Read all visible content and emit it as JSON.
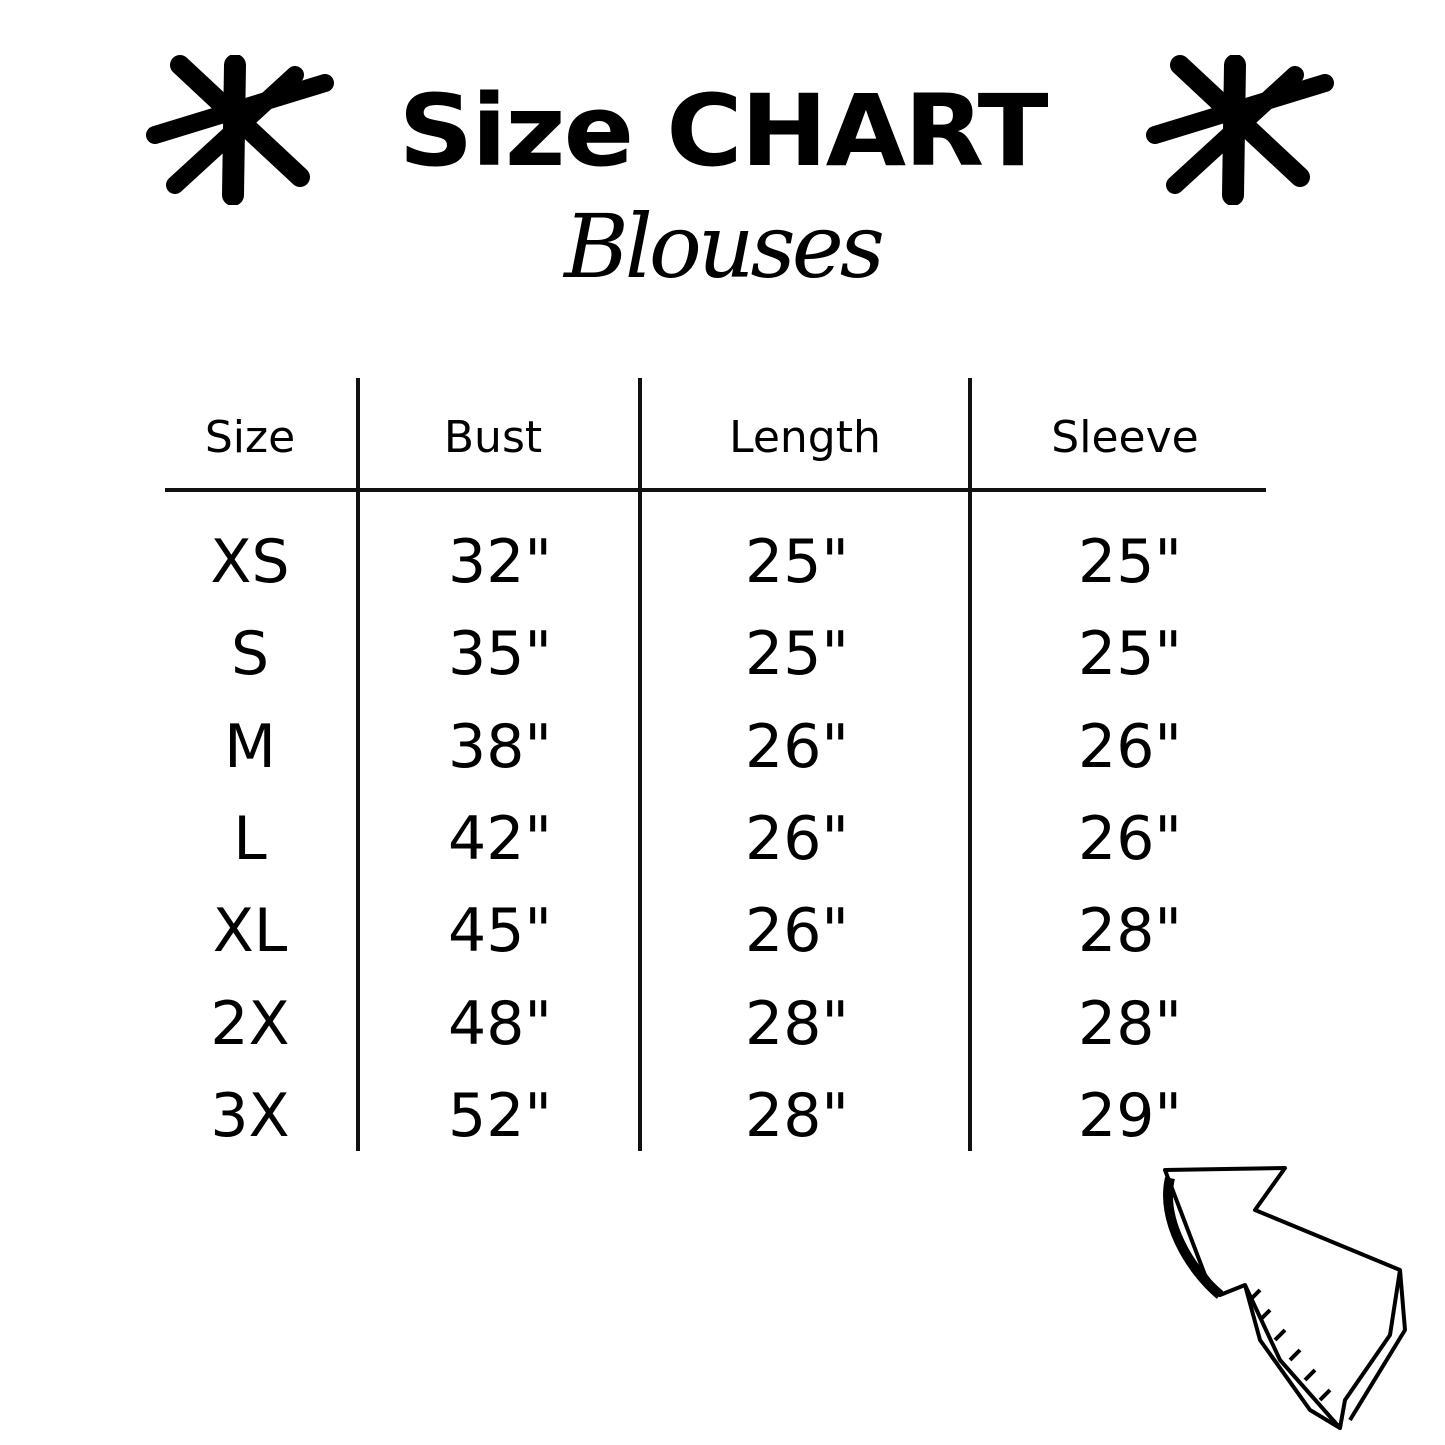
{
  "title": "Size CHART",
  "subtitle": "Blouses",
  "table": {
    "headers": [
      "Size",
      "Bust",
      "Length",
      "Sleeve"
    ],
    "rows": [
      [
        "XS",
        "32\"",
        "25\"",
        "25\""
      ],
      [
        "S",
        "35\"",
        "25\"",
        "25\""
      ],
      [
        "M",
        "38\"",
        "26\"",
        "26\""
      ],
      [
        "L",
        "42\"",
        "26\"",
        "26\""
      ],
      [
        "XL",
        "45\"",
        "26\"",
        "28\""
      ],
      [
        "2X",
        "48\"",
        "28\"",
        "28\""
      ],
      [
        "3X",
        "52\"",
        "28\"",
        "29\""
      ]
    ]
  },
  "decorations": {
    "left_icon": "asterisk-icon",
    "right_icon": "asterisk-icon",
    "corner_icon": "arrow-up-left-icon"
  }
}
